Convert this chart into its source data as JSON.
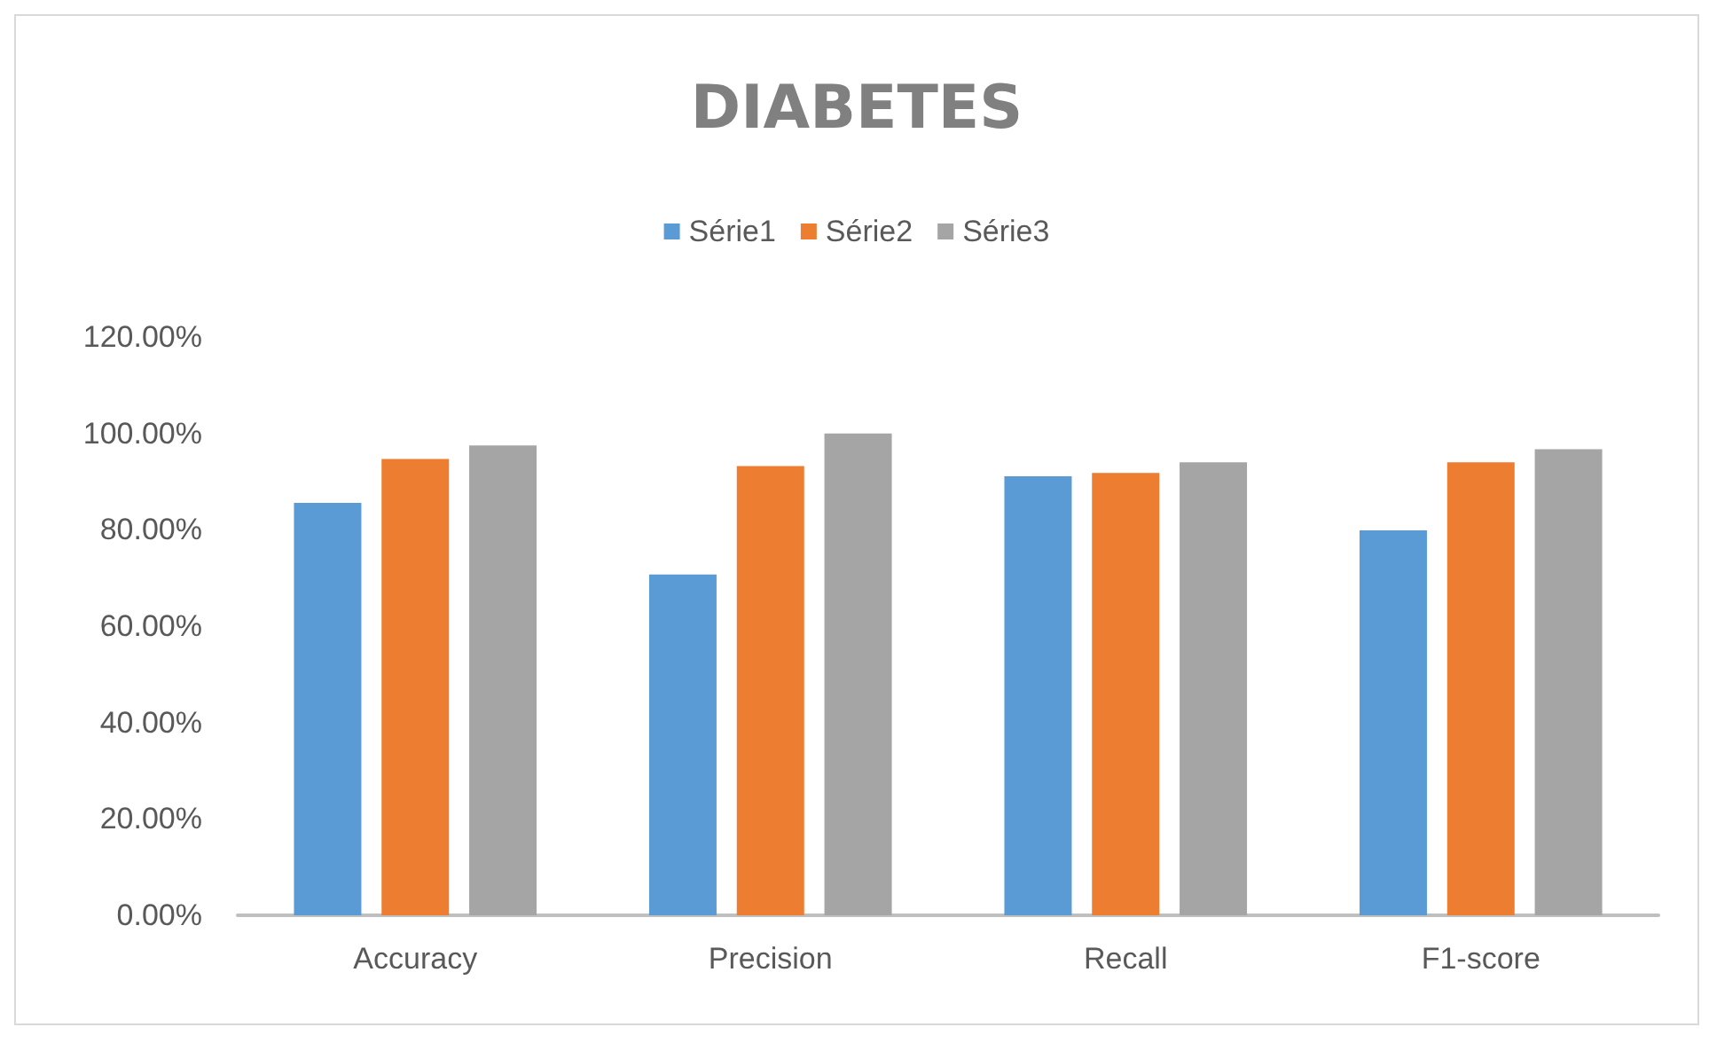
{
  "chart_data": {
    "type": "bar",
    "title": "DIABETES",
    "categories": [
      "Accuracy",
      "Precision",
      "Recall",
      "F1-score"
    ],
    "series": [
      {
        "name": "Série1",
        "color": "#5b9bd5",
        "values": [
          85.6,
          70.7,
          91.1,
          79.9
        ]
      },
      {
        "name": "Série2",
        "color": "#ed7d31",
        "values": [
          94.7,
          93.2,
          91.8,
          94.0
        ]
      },
      {
        "name": "Série3",
        "color": "#a5a5a5",
        "values": [
          97.5,
          100.0,
          94.0,
          96.7
        ]
      }
    ],
    "ylim": [
      0,
      120
    ],
    "yticks": [
      {
        "value": 0,
        "label": "0.00%"
      },
      {
        "value": 20,
        "label": "20.00%"
      },
      {
        "value": 40,
        "label": "40.00%"
      },
      {
        "value": 60,
        "label": "60.00%"
      },
      {
        "value": 80,
        "label": "80.00%"
      },
      {
        "value": 100,
        "label": "100.00%"
      },
      {
        "value": 120,
        "label": "120.00%"
      }
    ],
    "legend": "top"
  }
}
